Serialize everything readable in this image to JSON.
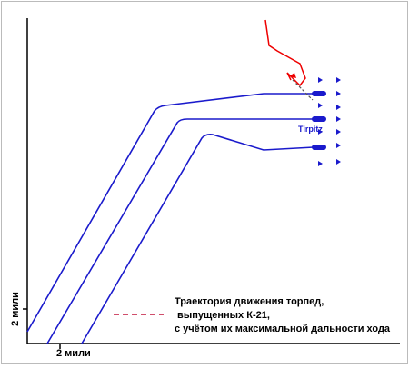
{
  "axes": {
    "y_label": "2 мили",
    "x_label": "2 мили"
  },
  "ship_label": "Tirpitz",
  "legend": {
    "lines": [
      "Траектория движения торпед,",
      " выпущенных К-21,",
      "с учётом их максимальной дальности хода"
    ]
  }
}
